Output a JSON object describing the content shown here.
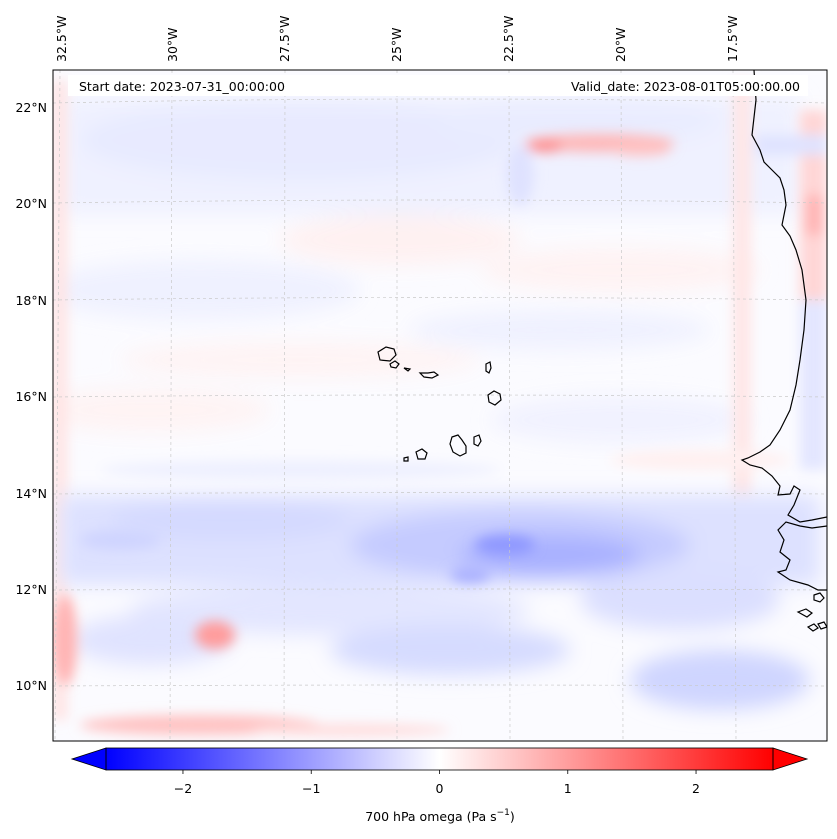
{
  "header": {
    "start_date": "Start date: 2023-07-31_00:00:00",
    "valid_date": "Valid_date: 2023-08-01T05:00:00.00"
  },
  "map": {
    "lon_labels": [
      "32.5°W",
      "30°W",
      "27.5°W",
      "25°W",
      "22.5°W",
      "20°W",
      "17.5°W"
    ],
    "lat_labels": [
      "22°N",
      "20°N",
      "18°N",
      "16°N",
      "14°N",
      "12°N",
      "10°N"
    ],
    "field_colormap": "bwr",
    "coastline_color": "#000000",
    "gridline_style": "dashed light gray"
  },
  "colorbar": {
    "ticks": [
      "−2",
      "−1",
      "0",
      "1",
      "2"
    ],
    "tick_values": [
      -2,
      -1,
      0,
      1,
      2
    ],
    "range": [
      -2.6,
      2.6
    ],
    "label_main": "700 hPa omega (Pa s",
    "label_sup": "−1",
    "label_end": ")",
    "color_min": "#0000ff",
    "color_mid": "#ffffff",
    "color_max": "#ff0000"
  }
}
